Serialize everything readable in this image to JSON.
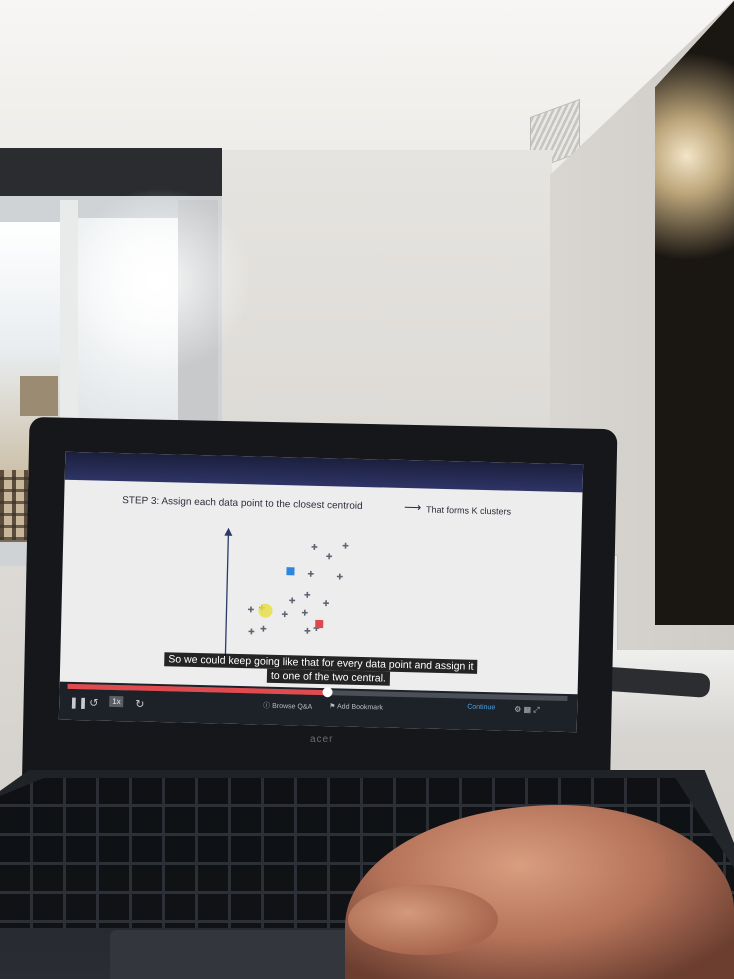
{
  "video": {
    "step_title": "STEP 3: Assign each data point to the closest centroid",
    "step_result": "That forms K clusters",
    "subtitle_line1": "So we could keep going like that for every data point and assign it",
    "subtitle_line2": "to one of the two central.",
    "progress_fraction": 0.52,
    "speed_label": "1x",
    "browse_qa": "Browse Q&A",
    "add_bookmark": "Add Bookmark",
    "continue_label": "Continue"
  },
  "laptop": {
    "brand": "acer"
  },
  "plot": {
    "point_color": "#5f6370",
    "centroid_blue": "#2f86de",
    "centroid_red": "#e0474c",
    "highlight": "#e8de4a"
  }
}
